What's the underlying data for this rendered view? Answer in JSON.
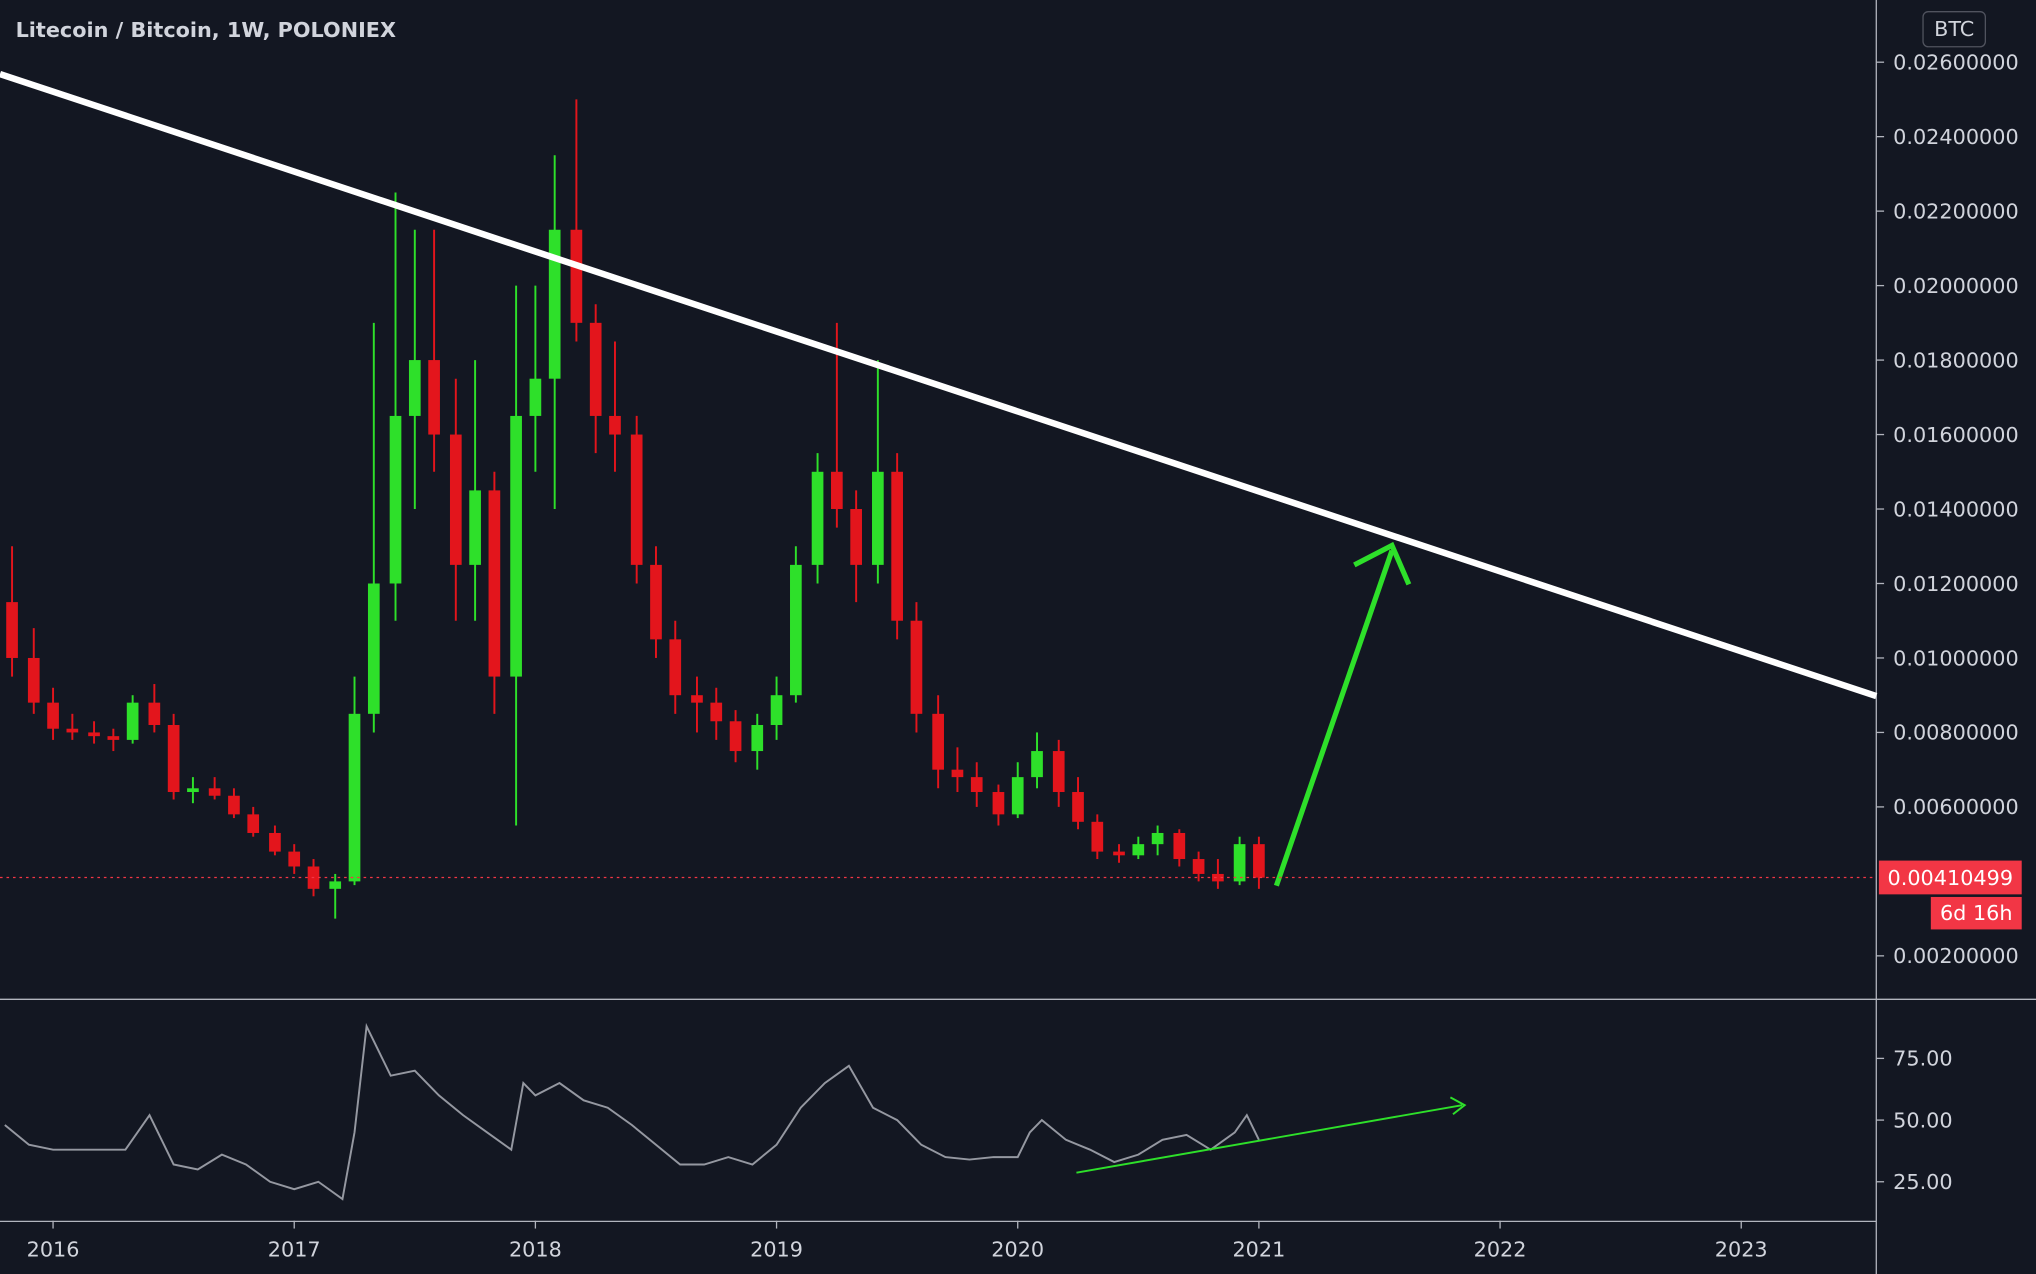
{
  "chart_data": [
    {
      "type": "candlestick",
      "title": "Litecoin / Bitcoin, 1W, POLONIEX",
      "currency": "BTC",
      "x": [
        2015.83,
        2015.92,
        2016.0,
        2016.08,
        2016.17,
        2016.25,
        2016.33,
        2016.42,
        2016.5,
        2016.58,
        2016.67,
        2016.75,
        2016.83,
        2016.92,
        2017.0,
        2017.08,
        2017.17,
        2017.25,
        2017.33,
        2017.42,
        2017.5,
        2017.58,
        2017.67,
        2017.75,
        2017.83,
        2017.92,
        2018.0,
        2018.08,
        2018.17,
        2018.25,
        2018.33,
        2018.42,
        2018.5,
        2018.58,
        2018.67,
        2018.75,
        2018.83,
        2018.92,
        2019.0,
        2019.08,
        2019.17,
        2019.25,
        2019.33,
        2019.42,
        2019.5,
        2019.58,
        2019.67,
        2019.75,
        2019.83,
        2019.92,
        2020.0,
        2020.08,
        2020.17,
        2020.25,
        2020.33,
        2020.42,
        2020.5,
        2020.58,
        2020.67,
        2020.75,
        2020.83,
        2020.92,
        2021.0
      ],
      "open": [
        0.0115,
        0.01,
        0.0088,
        0.0081,
        0.008,
        0.0079,
        0.0078,
        0.0088,
        0.0082,
        0.0064,
        0.0065,
        0.0063,
        0.0058,
        0.0053,
        0.0048,
        0.0044,
        0.0038,
        0.004,
        0.0085,
        0.012,
        0.0165,
        0.018,
        0.016,
        0.0125,
        0.0145,
        0.0095,
        0.0165,
        0.0175,
        0.0215,
        0.019,
        0.0165,
        0.016,
        0.0125,
        0.0105,
        0.009,
        0.0088,
        0.0083,
        0.0075,
        0.0082,
        0.009,
        0.0125,
        0.015,
        0.014,
        0.0125,
        0.015,
        0.011,
        0.0085,
        0.007,
        0.0068,
        0.0064,
        0.0058,
        0.0068,
        0.0075,
        0.0064,
        0.0056,
        0.0048,
        0.0047,
        0.005,
        0.0053,
        0.0046,
        0.0042,
        0.004,
        0.005
      ],
      "high": [
        0.013,
        0.0108,
        0.0092,
        0.0085,
        0.0083,
        0.0081,
        0.009,
        0.0093,
        0.0085,
        0.0068,
        0.0068,
        0.0065,
        0.006,
        0.0055,
        0.005,
        0.0046,
        0.0042,
        0.0095,
        0.019,
        0.0225,
        0.0215,
        0.0215,
        0.0175,
        0.018,
        0.015,
        0.02,
        0.02,
        0.0235,
        0.025,
        0.0195,
        0.0185,
        0.0165,
        0.013,
        0.011,
        0.0095,
        0.0092,
        0.0086,
        0.0085,
        0.0095,
        0.013,
        0.0155,
        0.019,
        0.0145,
        0.018,
        0.0155,
        0.0115,
        0.009,
        0.0076,
        0.0072,
        0.0066,
        0.0072,
        0.008,
        0.0078,
        0.0068,
        0.0058,
        0.005,
        0.0052,
        0.0055,
        0.0054,
        0.0048,
        0.0046,
        0.0052,
        0.0052
      ],
      "low": [
        0.0095,
        0.0085,
        0.0078,
        0.0078,
        0.0077,
        0.0075,
        0.0077,
        0.008,
        0.0062,
        0.0061,
        0.0062,
        0.0057,
        0.0052,
        0.0047,
        0.0042,
        0.0036,
        0.003,
        0.0039,
        0.008,
        0.011,
        0.014,
        0.015,
        0.011,
        0.011,
        0.0085,
        0.0055,
        0.015,
        0.014,
        0.0185,
        0.0155,
        0.015,
        0.012,
        0.01,
        0.0085,
        0.008,
        0.0078,
        0.0072,
        0.007,
        0.0078,
        0.0088,
        0.012,
        0.0135,
        0.0115,
        0.012,
        0.0105,
        0.008,
        0.0065,
        0.0064,
        0.006,
        0.0055,
        0.0057,
        0.0065,
        0.006,
        0.0054,
        0.0046,
        0.0045,
        0.0046,
        0.0047,
        0.0044,
        0.004,
        0.0038,
        0.0039,
        0.0038
      ],
      "close": [
        0.01,
        0.0088,
        0.0081,
        0.008,
        0.0079,
        0.0078,
        0.0088,
        0.0082,
        0.0064,
        0.0065,
        0.0063,
        0.0058,
        0.0053,
        0.0048,
        0.0044,
        0.0038,
        0.004,
        0.0085,
        0.012,
        0.0165,
        0.018,
        0.016,
        0.0125,
        0.0145,
        0.0095,
        0.0165,
        0.0175,
        0.0215,
        0.019,
        0.0165,
        0.016,
        0.0125,
        0.0105,
        0.009,
        0.0088,
        0.0083,
        0.0075,
        0.0082,
        0.009,
        0.0125,
        0.015,
        0.014,
        0.0125,
        0.015,
        0.011,
        0.0085,
        0.007,
        0.0068,
        0.0064,
        0.0058,
        0.0068,
        0.0075,
        0.0064,
        0.0056,
        0.0048,
        0.0047,
        0.005,
        0.0053,
        0.0046,
        0.0042,
        0.004,
        0.005,
        0.0041
      ],
      "up_color": "#2ee02a",
      "down_color": "#e3151c",
      "xlim": [
        2015.78,
        2023.56
      ],
      "ylim": [
        0.00085,
        0.02767
      ],
      "yticks": [
        {
          "value": 0.002,
          "label": "0.00200000"
        },
        {
          "value": 0.006,
          "label": "0.00600000"
        },
        {
          "value": 0.008,
          "label": "0.00800000"
        },
        {
          "value": 0.01,
          "label": "0.01000000"
        },
        {
          "value": 0.012,
          "label": "0.01200000"
        },
        {
          "value": 0.014,
          "label": "0.01400000"
        },
        {
          "value": 0.016,
          "label": "0.01600000"
        },
        {
          "value": 0.018,
          "label": "0.01800000"
        },
        {
          "value": 0.02,
          "label": "0.02000000"
        },
        {
          "value": 0.022,
          "label": "0.02200000"
        },
        {
          "value": 0.024,
          "label": "0.02400000"
        },
        {
          "value": 0.026,
          "label": "0.02600000"
        }
      ],
      "last_price": 0.00410499,
      "countdown": "6d 16h",
      "price_line_color": "#f23645"
    },
    {
      "type": "line",
      "x": [
        2015.8,
        2015.9,
        2016.0,
        2016.1,
        2016.2,
        2016.3,
        2016.4,
        2016.5,
        2016.6,
        2016.7,
        2016.8,
        2016.9,
        2017.0,
        2017.1,
        2017.2,
        2017.25,
        2017.3,
        2017.4,
        2017.5,
        2017.6,
        2017.7,
        2017.8,
        2017.9,
        2017.95,
        2018.0,
        2018.1,
        2018.2,
        2018.3,
        2018.4,
        2018.5,
        2018.6,
        2018.7,
        2018.8,
        2018.9,
        2019.0,
        2019.1,
        2019.2,
        2019.3,
        2019.4,
        2019.5,
        2019.6,
        2019.7,
        2019.8,
        2019.9,
        2020.0,
        2020.05,
        2020.1,
        2020.2,
        2020.3,
        2020.4,
        2020.5,
        2020.6,
        2020.7,
        2020.8,
        2020.9,
        2020.95,
        2021.0
      ],
      "values": [
        48,
        40,
        38,
        38,
        38,
        38,
        52,
        32,
        30,
        36,
        32,
        25,
        22,
        25,
        18,
        45,
        88,
        68,
        70,
        60,
        52,
        45,
        38,
        65,
        60,
        65,
        58,
        55,
        48,
        40,
        32,
        32,
        35,
        32,
        40,
        55,
        65,
        72,
        55,
        50,
        40,
        35,
        34,
        35,
        35,
        45,
        50,
        42,
        38,
        33,
        36,
        42,
        44,
        38,
        45,
        52,
        42
      ],
      "color": "#9598a1",
      "xlim": [
        2015.78,
        2023.56
      ],
      "ylim": [
        9.2,
        99.2
      ],
      "yticks": [
        {
          "value": 25,
          "label": "25.00"
        },
        {
          "value": 50,
          "label": "50.00"
        },
        {
          "value": 75,
          "label": "75.00"
        }
      ],
      "xticks": [
        2016,
        2017,
        2018,
        2019,
        2020,
        2021,
        2022,
        2023
      ]
    }
  ]
}
